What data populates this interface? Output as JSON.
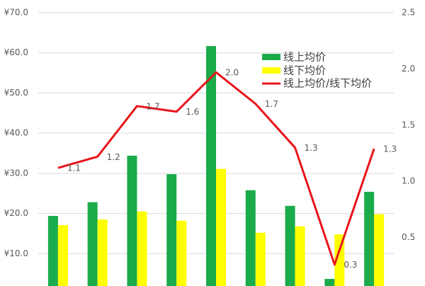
{
  "chart_data": {
    "type": "bar+line",
    "categories": [
      null,
      null,
      null,
      null,
      null,
      null,
      null,
      null,
      null
    ],
    "series": [
      {
        "name": "线上均价",
        "type": "bar",
        "color": "#1aab4b",
        "values": [
          19.4,
          22.8,
          34.4,
          29.8,
          61.7,
          25.8,
          21.9,
          3.7,
          25.4
        ]
      },
      {
        "name": "线下均价",
        "type": "bar",
        "color": "#ffff00",
        "values": [
          17.1,
          18.5,
          20.5,
          18.2,
          31.1,
          15.2,
          16.8,
          14.8,
          19.8
        ]
      },
      {
        "name": "线上均价/线下均价",
        "type": "line",
        "axis": "y2",
        "color": "#e8141a",
        "values": [
          1.12,
          1.22,
          1.67,
          1.62,
          1.97,
          1.69,
          1.3,
          0.26,
          1.29
        ],
        "value_labels": [
          "1.1",
          "1.2",
          "1.7",
          "1.6",
          "2.0",
          "1.7",
          "1.3",
          "0.3",
          "1.3"
        ]
      }
    ],
    "ylim": [
      0,
      70
    ],
    "yticks": [
      {
        "value": 10,
        "label": "¥10.0"
      },
      {
        "value": 20,
        "label": "¥20.0"
      },
      {
        "value": 30,
        "label": "¥30.0"
      },
      {
        "value": 40,
        "label": "¥40.0"
      },
      {
        "value": 50,
        "label": "¥50.0"
      },
      {
        "value": 60,
        "label": "¥60.0"
      },
      {
        "value": 70,
        "label": "¥70.0"
      }
    ],
    "y2lim": [
      0,
      2.5
    ],
    "y2ticks": [
      0.5,
      {
        "value": 1.0,
        "label": "1.0"
      },
      1.5,
      {
        "value": 2.0,
        "label": "2.0"
      },
      2.5
    ],
    "grid": true
  }
}
